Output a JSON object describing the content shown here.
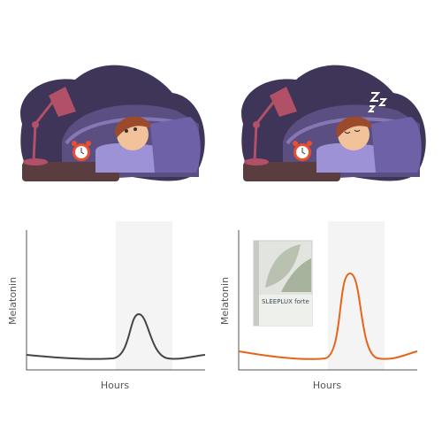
{
  "panels": [
    {
      "y_label": "Melatonin",
      "x_label": "Hours"
    },
    {
      "y_label": "Melatonin",
      "x_label": "Hours",
      "product": {
        "name": "SLEEPLUX forte"
      }
    }
  ]
}
